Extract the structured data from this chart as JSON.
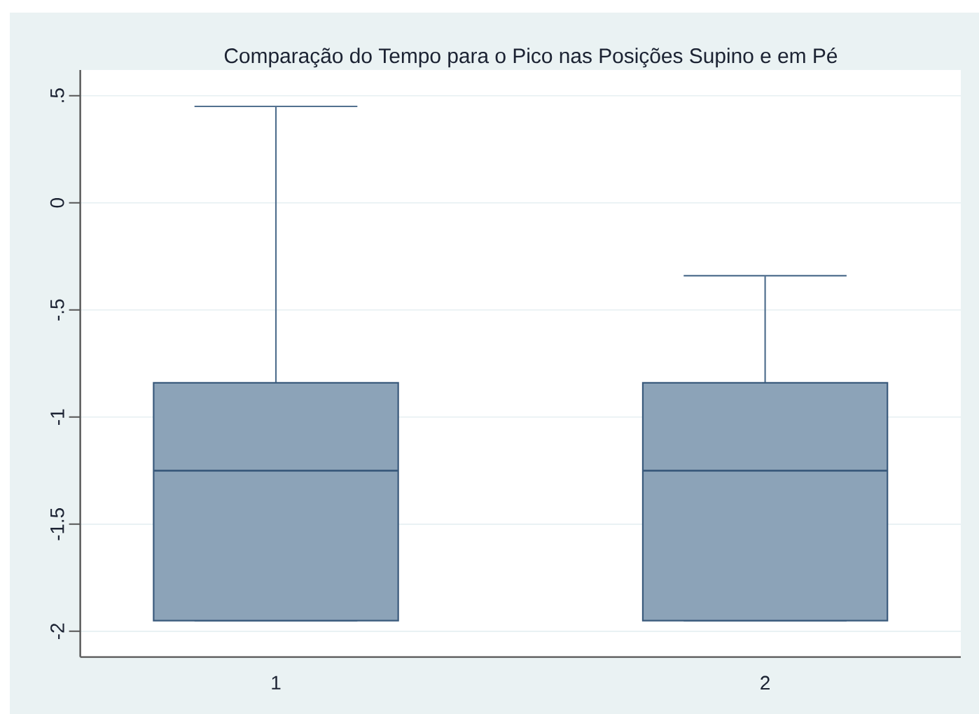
{
  "chart_data": {
    "type": "box",
    "title": "Comparação do Tempo para o Pico nas Posições Supino e em Pé",
    "categories": [
      "1",
      "2"
    ],
    "boxes": [
      {
        "low": -1.95,
        "q1": -1.95,
        "median": -1.25,
        "q3": -0.84,
        "high": 0.45
      },
      {
        "low": -1.95,
        "q1": -1.95,
        "median": -1.25,
        "q3": -0.84,
        "high": -0.34
      }
    ],
    "color": "#8ca3b8",
    "ylim": [
      -2.12,
      0.62
    ],
    "yticks": [
      {
        "value": 0.5,
        "label": ".5"
      },
      0,
      {
        "value": -0.5,
        "label": "-.5"
      },
      -1,
      -1.5,
      -2
    ],
    "grid": "y"
  }
}
